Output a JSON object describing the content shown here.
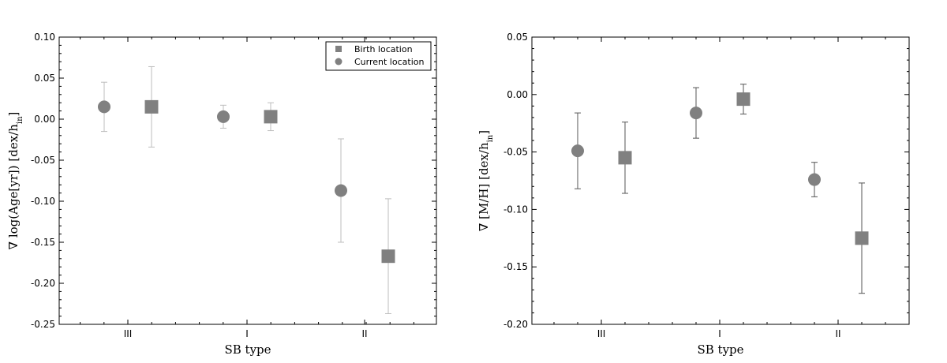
{
  "chart_data": [
    {
      "type": "scatter",
      "xlabel": "SB type",
      "ylabel": "∇ log(Age[yr]) [dex/h_in]",
      "categories": [
        "III",
        "I",
        "II"
      ],
      "ylim": [
        -0.25,
        0.1
      ],
      "yticks": [
        "0.10",
        "0.05",
        "0.00",
        "-0.05",
        "-0.10",
        "-0.15",
        "-0.20",
        "-0.25"
      ],
      "legend": {
        "position": "top-right",
        "entries": [
          "Birth location",
          "Current location"
        ]
      },
      "series": [
        {
          "name": "Current location",
          "marker": "circle",
          "values": [
            0.015,
            0.003,
            -0.087
          ],
          "errors": [
            0.03,
            0.014,
            0.063
          ]
        },
        {
          "name": "Birth location",
          "marker": "square",
          "values": [
            0.015,
            0.003,
            -0.167
          ],
          "errors": [
            0.049,
            0.017,
            0.07
          ]
        }
      ],
      "grid": false
    },
    {
      "type": "scatter",
      "xlabel": "SB type",
      "ylabel": "∇ [M/H] [dex/h_in]",
      "categories": [
        "III",
        "I",
        "II"
      ],
      "ylim": [
        -0.2,
        0.05
      ],
      "yticks": [
        "0.05",
        "0.00",
        "-0.05",
        "-0.10",
        "-0.15",
        "-0.20"
      ],
      "series": [
        {
          "name": "Current location",
          "marker": "circle",
          "values": [
            -0.049,
            -0.016,
            -0.074
          ],
          "errors": [
            0.033,
            0.022,
            0.015
          ]
        },
        {
          "name": "Birth location",
          "marker": "square",
          "values": [
            -0.055,
            -0.004,
            -0.125
          ],
          "errors": [
            0.031,
            0.013,
            0.048
          ]
        }
      ],
      "grid": false
    }
  ],
  "colors": {
    "marker": "#808080",
    "errorbar": "#888888",
    "axis": "#000000"
  }
}
